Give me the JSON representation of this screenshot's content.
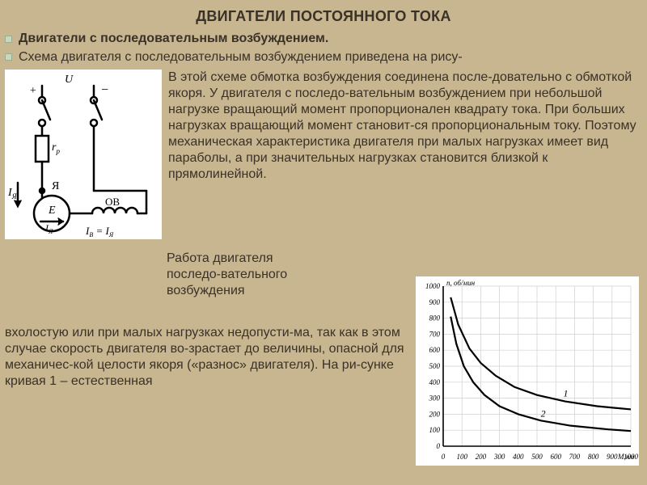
{
  "title": "ДВИГАТЕЛИ ПОСТОЯННОГО ТОКА",
  "subtitle": "Двигатели с последовательным возбуждением.",
  "intro": "Схема двигателя с последовательным возбуждением приведена на рису-",
  "paragraph": "В этой схеме обмотка возбуждения соединена после-довательно с обмоткой якоря. У двигателя с последо-вательным возбуждением при небольшой нагрузке вращающий момент пропорционален квадрату тока. При больших нагрузках вращающий момент становит-ся пропорциональным току. Поэтому механическая характеристика двигателя при малых нагрузках имеет вид параболы, а при значительных нагрузках становится близкой к прямолинейной.",
  "overlap_a": "Работа двигателя",
  "overlap_b": "последо-вательного",
  "overlap_c": "возбуждения",
  "lowtext": "вхолостую или при малых нагрузках недопусти-ма, так как в этом случае скорость двигателя во-зрастает до величины, опасной для механичес-кой целости якоря («разнос» двигателя). На ри-сунке кривая 1 – естественная",
  "circuit": {
    "labels": {
      "U": "U",
      "plus": "+",
      "minus": "−",
      "r_p": "r",
      "r_sub": "р",
      "A": "Я",
      "E": "E",
      "I_A_left": "I",
      "I_A_sub": "Я",
      "OB": "ОВ",
      "Iv_eq": "I",
      "Iv_sub": "В",
      "eq": " = I",
      "eq_sub": "Я"
    },
    "colors": {
      "bg": "#ffffff",
      "stroke": "#000000",
      "line_width": 2.5
    }
  },
  "chart": {
    "type": "line",
    "xlim": [
      0,
      1000
    ],
    "ylim": [
      0,
      1000
    ],
    "xtick_step": 100,
    "ytick_step": 100,
    "xlabel": "М,нм",
    "ylabel": "n, об/мин",
    "grid_color": "#cfcfcf",
    "axis_color": "#000000",
    "background_color": "#ffffff",
    "curve_color": "#000000",
    "curve_width": 2.2,
    "label_fontsize": 9,
    "tick_fontsize": 9,
    "series": [
      {
        "name": "1",
        "points": [
          [
            40,
            930
          ],
          [
            80,
            760
          ],
          [
            140,
            610
          ],
          [
            200,
            520
          ],
          [
            280,
            440
          ],
          [
            380,
            370
          ],
          [
            500,
            320
          ],
          [
            650,
            280
          ],
          [
            820,
            250
          ],
          [
            1000,
            230
          ]
        ]
      },
      {
        "name": "2",
        "points": [
          [
            40,
            810
          ],
          [
            70,
            640
          ],
          [
            110,
            500
          ],
          [
            160,
            400
          ],
          [
            220,
            320
          ],
          [
            300,
            250
          ],
          [
            400,
            200
          ],
          [
            520,
            160
          ],
          [
            680,
            128
          ],
          [
            880,
            105
          ],
          [
            1000,
            95
          ]
        ]
      }
    ],
    "curve_labels": [
      {
        "text": "1",
        "x": 640,
        "y": 310
      },
      {
        "text": "2",
        "x": 520,
        "y": 185
      }
    ]
  }
}
